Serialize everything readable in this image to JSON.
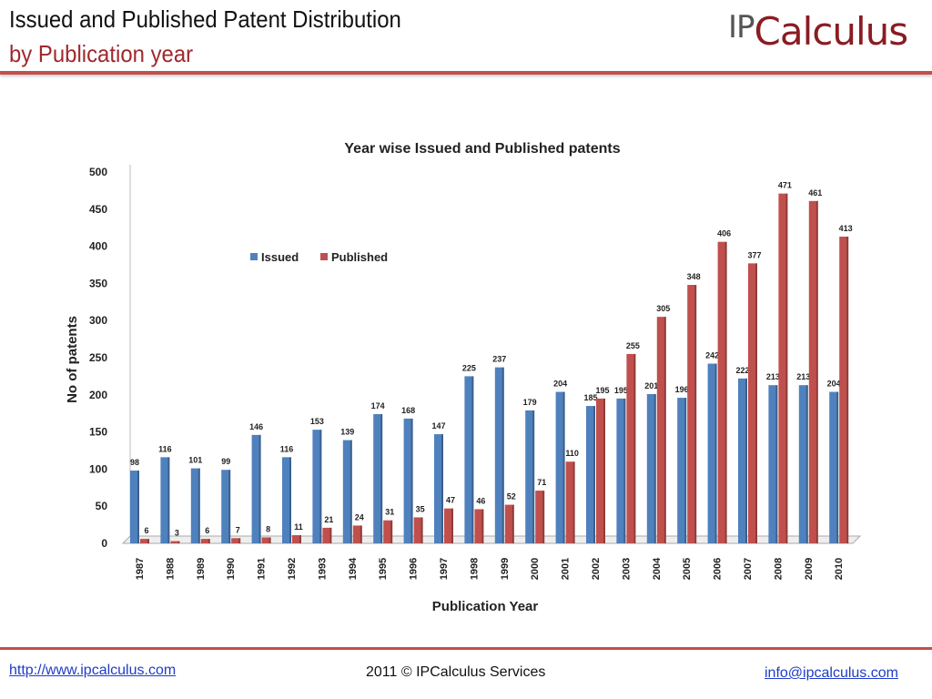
{
  "header": {
    "title": "Issued and Published Patent Distribution",
    "subtitle": "by Publication year",
    "logo": {
      "prefix": "IP",
      "suffix": "Calculus"
    }
  },
  "footer": {
    "website": "http://www.ipcalculus.com",
    "copyright": "2011 © IPCalculus Services",
    "email": "info@ipcalculus.com"
  },
  "colors": {
    "issued": "#4f81bd",
    "published": "#c0504d",
    "accent": "#c0504d"
  },
  "chart_data": {
    "type": "bar",
    "title": "Year wise Issued and Published patents",
    "xlabel": "Publication Year",
    "ylabel": "No of patents",
    "ylim": [
      0,
      500
    ],
    "yticks": [
      0,
      50,
      100,
      150,
      200,
      250,
      300,
      350,
      400,
      450,
      500
    ],
    "legend_position": "top-left",
    "categories": [
      "1987",
      "1988",
      "1989",
      "1990",
      "1991",
      "1992",
      "1993",
      "1994",
      "1995",
      "1996",
      "1997",
      "1998",
      "1999",
      "2000",
      "2001",
      "2002",
      "2003",
      "2004",
      "2005",
      "2006",
      "2007",
      "2008",
      "2009",
      "2010"
    ],
    "series": [
      {
        "name": "Issued",
        "values": [
          98,
          116,
          101,
          99,
          146,
          116,
          153,
          139,
          174,
          168,
          147,
          225,
          237,
          179,
          204,
          185,
          195,
          201,
          196,
          242,
          222,
          213,
          213,
          204
        ]
      },
      {
        "name": "Published",
        "values": [
          6,
          3,
          6,
          7,
          8,
          11,
          21,
          24,
          31,
          35,
          47,
          46,
          52,
          71,
          110,
          195,
          255,
          305,
          348,
          406,
          377,
          471,
          461,
          413
        ]
      }
    ]
  }
}
